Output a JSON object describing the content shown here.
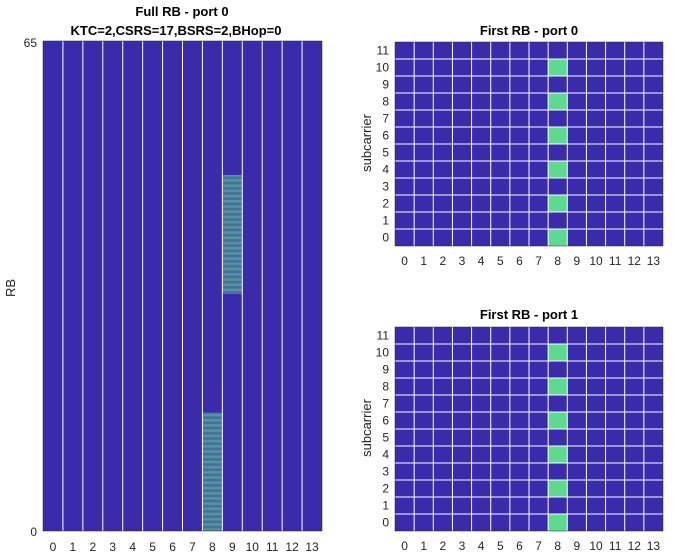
{
  "colors": {
    "background": "#3a2bab",
    "signal": "#5fd98f",
    "grid": "#ffffff"
  },
  "chart_data": [
    {
      "type": "heatmap",
      "title": "Full RB - port 0",
      "subtitle": "KTC=2,CSRS=17,BSRS=2,BHop=0",
      "xlabel": "",
      "ylabel": "RB",
      "x_ticks": [
        "0",
        "1",
        "2",
        "3",
        "4",
        "5",
        "6",
        "7",
        "8",
        "9",
        "10",
        "11",
        "12",
        "13"
      ],
      "y_tick_labels": [
        "0",
        "65"
      ],
      "ylim": [
        0,
        66
      ],
      "n_symbols": 14,
      "n_rows": 792,
      "n_rows_note": "66 resource blocks x 12 subcarriers",
      "grid": "vertical symbol lines only",
      "active_cells": [
        {
          "symbol": 8,
          "rb_start": 0,
          "rb_end": 16,
          "subcarriers": "alternating (comb)"
        },
        {
          "symbol": 9,
          "rb_start": 32,
          "rb_end": 48,
          "subcarriers": "alternating (comb)"
        }
      ]
    },
    {
      "type": "heatmap",
      "title": "First RB - port 0",
      "xlabel": "",
      "ylabel": "subcarrier",
      "x_ticks": [
        "0",
        "1",
        "2",
        "3",
        "4",
        "5",
        "6",
        "7",
        "8",
        "9",
        "10",
        "11",
        "12",
        "13"
      ],
      "y_ticks": [
        "0",
        "1",
        "2",
        "3",
        "4",
        "5",
        "6",
        "7",
        "8",
        "9",
        "10",
        "11"
      ],
      "n_symbols": 14,
      "n_subcarriers": 12,
      "grid": true,
      "active_cells": [
        [
          8,
          0
        ],
        [
          8,
          2
        ],
        [
          8,
          4
        ],
        [
          8,
          6
        ],
        [
          8,
          8
        ],
        [
          8,
          10
        ]
      ]
    },
    {
      "type": "heatmap",
      "title": "First RB - port 1",
      "xlabel": "",
      "ylabel": "subcarrier",
      "x_ticks": [
        "0",
        "1",
        "2",
        "3",
        "4",
        "5",
        "6",
        "7",
        "8",
        "9",
        "10",
        "11",
        "12",
        "13"
      ],
      "y_ticks": [
        "0",
        "1",
        "2",
        "3",
        "4",
        "5",
        "6",
        "7",
        "8",
        "9",
        "10",
        "11"
      ],
      "n_symbols": 14,
      "n_subcarriers": 12,
      "grid": true,
      "active_cells": [
        [
          8,
          0
        ],
        [
          8,
          2
        ],
        [
          8,
          4
        ],
        [
          8,
          6
        ],
        [
          8,
          8
        ],
        [
          8,
          10
        ]
      ]
    }
  ]
}
